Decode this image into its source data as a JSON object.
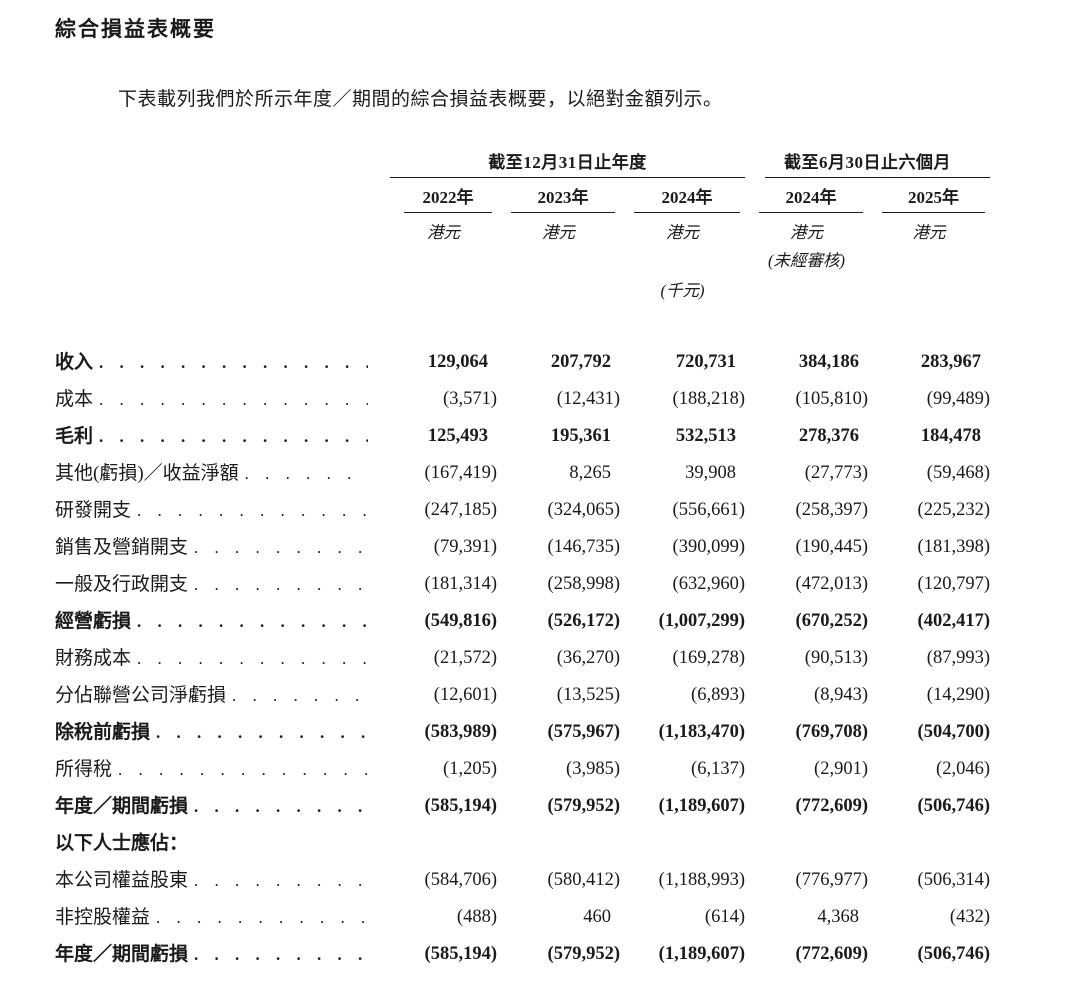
{
  "page": {
    "title": "綜合損益表概要",
    "intro": "下表載列我們於所示年度／期間的綜合損益表概要，以絕對金額列示。"
  },
  "colors": {
    "text": "#1a1a1a",
    "background": "#ffffff",
    "rule": "#1a1a1a"
  },
  "table": {
    "col_groups": [
      {
        "label": "截至12月31日止年度",
        "span": 3
      },
      {
        "label": "截至6月30日止六個月",
        "span": 2
      }
    ],
    "years": [
      "2022年",
      "2023年",
      "2024年",
      "2024年",
      "2025年"
    ],
    "units": [
      "港元",
      "港元",
      "港元",
      "港元",
      "港元"
    ],
    "unaudited_note": "(未經審核)",
    "thousands_note": "(千元)",
    "rows": [
      {
        "label": "收入",
        "bold": true,
        "leader": true,
        "values": [
          "129,064",
          "207,792",
          "720,731",
          "384,186",
          "283,967"
        ]
      },
      {
        "label": "成本",
        "bold": false,
        "leader": true,
        "values": [
          "(3,571)",
          "(12,431)",
          "(188,218)",
          "(105,810)",
          "(99,489)"
        ]
      },
      {
        "label": "毛利",
        "bold": true,
        "leader": true,
        "values": [
          "125,493",
          "195,361",
          "532,513",
          "278,376",
          "184,478"
        ]
      },
      {
        "label": "其他(虧損)／收益淨額",
        "bold": false,
        "leader": true,
        "values": [
          "(167,419)",
          "8,265",
          "39,908",
          "(27,773)",
          "(59,468)"
        ]
      },
      {
        "label": "研發開支",
        "bold": false,
        "leader": true,
        "values": [
          "(247,185)",
          "(324,065)",
          "(556,661)",
          "(258,397)",
          "(225,232)"
        ]
      },
      {
        "label": "銷售及營銷開支",
        "bold": false,
        "leader": true,
        "values": [
          "(79,391)",
          "(146,735)",
          "(390,099)",
          "(190,445)",
          "(181,398)"
        ]
      },
      {
        "label": "一般及行政開支",
        "bold": false,
        "leader": true,
        "values": [
          "(181,314)",
          "(258,998)",
          "(632,960)",
          "(472,013)",
          "(120,797)"
        ]
      },
      {
        "label": "經營虧損",
        "bold": true,
        "leader": true,
        "values": [
          "(549,816)",
          "(526,172)",
          "(1,007,299)",
          "(670,252)",
          "(402,417)"
        ]
      },
      {
        "label": "財務成本",
        "bold": false,
        "leader": true,
        "values": [
          "(21,572)",
          "(36,270)",
          "(169,278)",
          "(90,513)",
          "(87,993)"
        ]
      },
      {
        "label": "分佔聯營公司淨虧損",
        "bold": false,
        "leader": true,
        "values": [
          "(12,601)",
          "(13,525)",
          "(6,893)",
          "(8,943)",
          "(14,290)"
        ]
      },
      {
        "label": "除稅前虧損",
        "bold": true,
        "leader": true,
        "values": [
          "(583,989)",
          "(575,967)",
          "(1,183,470)",
          "(769,708)",
          "(504,700)"
        ]
      },
      {
        "label": "所得稅",
        "bold": false,
        "leader": true,
        "values": [
          "(1,205)",
          "(3,985)",
          "(6,137)",
          "(2,901)",
          "(2,046)"
        ]
      },
      {
        "label": "年度／期間虧損",
        "bold": true,
        "leader": true,
        "values": [
          "(585,194)",
          "(579,952)",
          "(1,189,607)",
          "(772,609)",
          "(506,746)"
        ]
      },
      {
        "label": "以下人士應佔：",
        "bold": true,
        "leader": false,
        "values": [
          "",
          "",
          "",
          "",
          ""
        ]
      },
      {
        "label": "本公司權益股東",
        "bold": false,
        "leader": true,
        "values": [
          "(584,706)",
          "(580,412)",
          "(1,188,993)",
          "(776,977)",
          "(506,314)"
        ]
      },
      {
        "label": "非控股權益",
        "bold": false,
        "leader": true,
        "values": [
          "(488)",
          "460",
          "(614)",
          "4,368",
          "(432)"
        ]
      },
      {
        "label": "年度／期間虧損",
        "bold": true,
        "leader": true,
        "values": [
          "(585,194)",
          "(579,952)",
          "(1,189,607)",
          "(772,609)",
          "(506,746)"
        ]
      }
    ]
  }
}
